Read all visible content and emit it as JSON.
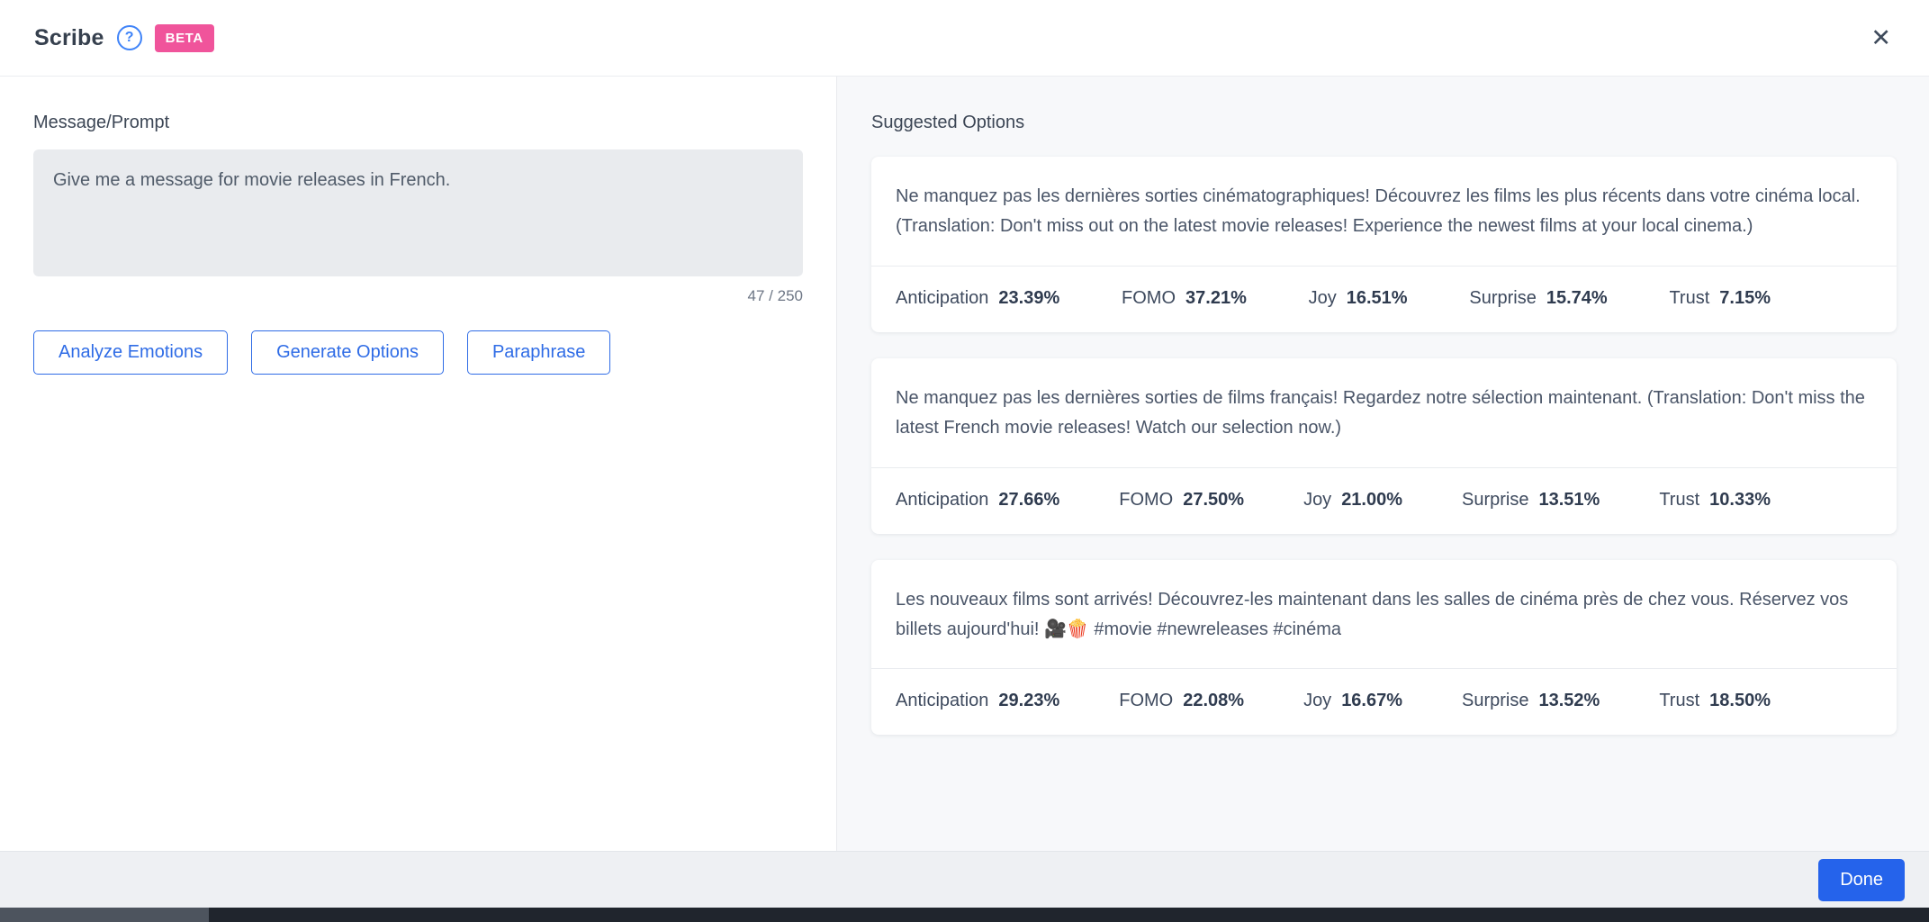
{
  "header": {
    "title": "Scribe",
    "help_icon": "?",
    "beta_label": "BETA",
    "close_icon": "✕"
  },
  "prompt": {
    "label": "Message/Prompt",
    "value": "Give me a message for movie releases in French.",
    "char_count": "47 / 250"
  },
  "actions": {
    "analyze_label": "Analyze Emotions",
    "generate_label": "Generate Options",
    "paraphrase_label": "Paraphrase"
  },
  "suggestions": {
    "title": "Suggested Options",
    "cards": [
      {
        "text": "Ne manquez pas les dernières sorties cinématographiques! Découvrez les films les plus récents dans votre cinéma local. (Translation: Don't miss out on the latest movie releases! Experience the newest films at your local cinema.)",
        "emotions": [
          {
            "label": "Anticipation",
            "value": "23.39%"
          },
          {
            "label": "FOMO",
            "value": "37.21%"
          },
          {
            "label": "Joy",
            "value": "16.51%"
          },
          {
            "label": "Surprise",
            "value": "15.74%"
          },
          {
            "label": "Trust",
            "value": "7.15%"
          }
        ]
      },
      {
        "text": "Ne manquez pas les dernières sorties de films français! Regardez notre sélection maintenant. (Translation: Don't miss the latest French movie releases! Watch our selection now.)",
        "emotions": [
          {
            "label": "Anticipation",
            "value": "27.66%"
          },
          {
            "label": "FOMO",
            "value": "27.50%"
          },
          {
            "label": "Joy",
            "value": "21.00%"
          },
          {
            "label": "Surprise",
            "value": "13.51%"
          },
          {
            "label": "Trust",
            "value": "10.33%"
          }
        ]
      },
      {
        "text": "Les nouveaux films sont arrivés! Découvrez-les maintenant dans les salles de cinéma près de chez vous. Réservez vos billets aujourd'hui! 🎥🍿 #movie #newreleases #cinéma",
        "emotions": [
          {
            "label": "Anticipation",
            "value": "29.23%"
          },
          {
            "label": "FOMO",
            "value": "22.08%"
          },
          {
            "label": "Joy",
            "value": "16.67%"
          },
          {
            "label": "Surprise",
            "value": "13.52%"
          },
          {
            "label": "Trust",
            "value": "18.50%"
          }
        ]
      }
    ]
  },
  "footer": {
    "done_label": "Done"
  },
  "colors": {
    "accent_blue": "#2f6ce6",
    "done_blue": "#2563eb",
    "beta_pink": "#f0549b",
    "panel_gray": "#f7f8fa"
  }
}
